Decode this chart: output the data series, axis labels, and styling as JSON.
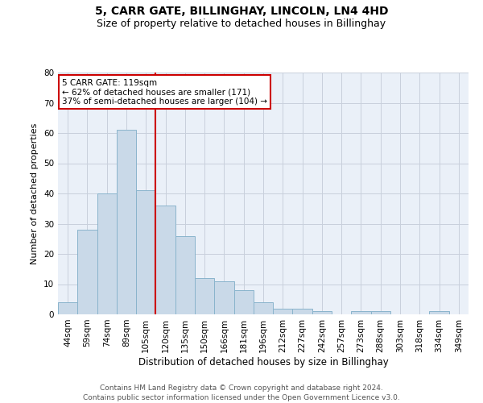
{
  "title": "5, CARR GATE, BILLINGHAY, LINCOLN, LN4 4HD",
  "subtitle": "Size of property relative to detached houses in Billinghay",
  "xlabel": "Distribution of detached houses by size in Billinghay",
  "ylabel": "Number of detached properties",
  "categories": [
    "44sqm",
    "59sqm",
    "74sqm",
    "89sqm",
    "105sqm",
    "120sqm",
    "135sqm",
    "150sqm",
    "166sqm",
    "181sqm",
    "196sqm",
    "212sqm",
    "227sqm",
    "242sqm",
    "257sqm",
    "273sqm",
    "288sqm",
    "303sqm",
    "318sqm",
    "334sqm",
    "349sqm"
  ],
  "values": [
    4,
    28,
    40,
    61,
    41,
    36,
    26,
    12,
    11,
    8,
    4,
    2,
    2,
    1,
    0,
    1,
    1,
    0,
    0,
    1,
    0
  ],
  "bar_color": "#c9d9e8",
  "bar_edge_color": "#8ab4cc",
  "vline_x": 4.5,
  "vline_color": "#cc0000",
  "ylim": [
    0,
    80
  ],
  "yticks": [
    0,
    10,
    20,
    30,
    40,
    50,
    60,
    70,
    80
  ],
  "annotation_title": "5 CARR GATE: 119sqm",
  "annotation_line1": "← 62% of detached houses are smaller (171)",
  "annotation_line2": "37% of semi-detached houses are larger (104) →",
  "annotation_box_color": "#ffffff",
  "annotation_box_edge": "#cc0000",
  "footer1": "Contains HM Land Registry data © Crown copyright and database right 2024.",
  "footer2": "Contains public sector information licensed under the Open Government Licence v3.0.",
  "background_color": "#ffffff",
  "axes_bg_color": "#eaf0f8",
  "grid_color": "#c8d0dc",
  "title_fontsize": 10,
  "subtitle_fontsize": 9,
  "tick_fontsize": 7.5,
  "ylabel_fontsize": 8,
  "xlabel_fontsize": 8.5,
  "footer_fontsize": 6.5
}
